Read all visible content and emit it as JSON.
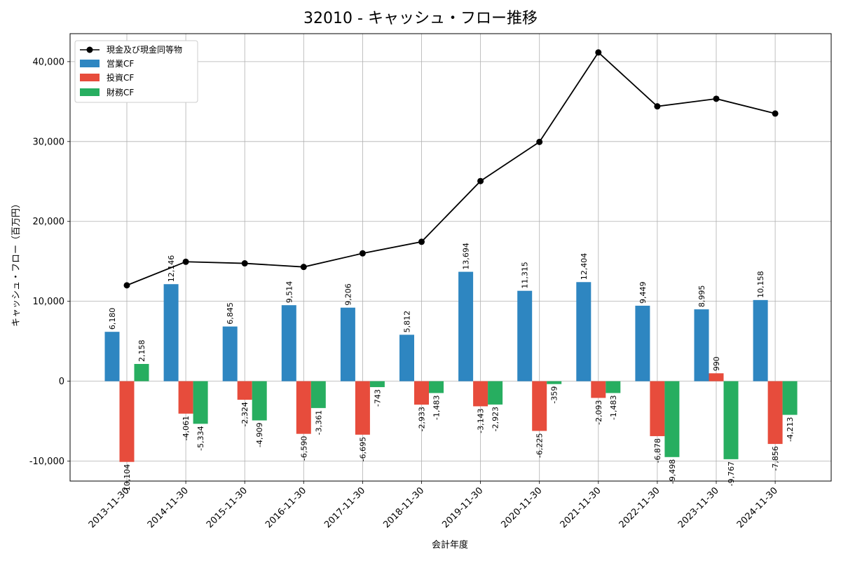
{
  "chart_data": {
    "type": "bar",
    "title": "32010 - キャッシュ・フロー推移",
    "xlabel": "会計年度",
    "ylabel": "キャッシュ・フロー（百万円）",
    "ylim": [
      -12500,
      43500
    ],
    "yticks": [
      -10000,
      0,
      10000,
      20000,
      30000,
      40000
    ],
    "ytick_labels": [
      "-10,000",
      "0",
      "10,000",
      "20,000",
      "30,000",
      "40,000"
    ],
    "grid": true,
    "legend_position": "top-left",
    "categories": [
      "2013-11-30",
      "2014-11-30",
      "2015-11-30",
      "2016-11-30",
      "2017-11-30",
      "2018-11-30",
      "2019-11-30",
      "2020-11-30",
      "2021-11-30",
      "2022-11-30",
      "2023-11-30",
      "2024-11-30"
    ],
    "series": [
      {
        "name": "営業CF",
        "kind": "bar",
        "color": "#2e86c1",
        "values": [
          6180,
          12146,
          6845,
          9514,
          9206,
          5812,
          13694,
          11315,
          12404,
          9449,
          8995,
          10158
        ],
        "labels": [
          "6,180",
          "12,146",
          "6,845",
          "9,514",
          "9,206",
          "5,812",
          "13,694",
          "11,315",
          "12,404",
          "9,449",
          "8,995",
          "10,158"
        ]
      },
      {
        "name": "投資CF",
        "kind": "bar",
        "color": "#e74c3c",
        "values": [
          -10104,
          -4061,
          -2324,
          -6590,
          -6695,
          -2933,
          -3143,
          -6225,
          -2093,
          -6878,
          990,
          -7856
        ],
        "labels": [
          "-10,104",
          "-4,061",
          "-2,324",
          "-6,590",
          "-6,695",
          "-2,933",
          "-3,143",
          "-6,225",
          "-2,093",
          "-6,878",
          "990",
          "-7,856"
        ]
      },
      {
        "name": "財務CF",
        "kind": "bar",
        "color": "#27ae60",
        "values": [
          2158,
          -5334,
          -4909,
          -3361,
          -743,
          -1483,
          -2923,
          -359,
          -1483,
          -9498,
          -9767,
          -4213
        ],
        "labels": [
          "2,158",
          "-5,334",
          "-4,909",
          "-3,361",
          "-743",
          "-1,483",
          "-2,923",
          "-359",
          "-1,483",
          "-9,498",
          "-9,767",
          "-4,213"
        ]
      },
      {
        "name": "現金及び現金同等物",
        "kind": "line",
        "color": "#000000",
        "values": [
          12000,
          14950,
          14750,
          14300,
          16000,
          17450,
          25050,
          29950,
          41150,
          34400,
          35350,
          33500
        ]
      }
    ]
  }
}
